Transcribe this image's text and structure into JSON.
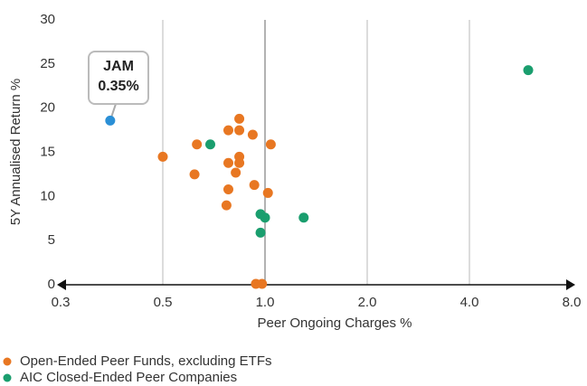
{
  "chart_data": {
    "type": "scatter",
    "xlabel": "Peer Ongoing Charges %",
    "ylabel": "5Y Annualised Return %",
    "xscale": "log",
    "xlim": [
      0.25,
      8
    ],
    "xticks": [
      {
        "value": 0.25,
        "label": "0.3"
      },
      0.5,
      {
        "value": 1,
        "label": "1.0"
      },
      {
        "value": 2,
        "label": "2.0"
      },
      {
        "value": 4,
        "label": "4.0"
      },
      {
        "value": 8,
        "label": "8.0"
      }
    ],
    "ylim": [
      0,
      30
    ],
    "yticks": [
      0,
      5,
      10,
      15,
      20,
      25,
      30
    ],
    "grid": true,
    "legend": "bottom-left",
    "series": [
      {
        "name": "Open-Ended Peer Funds, excluding ETFs",
        "color": "#e87722",
        "x": [
          0.5,
          0.63,
          0.62,
          0.78,
          0.84,
          0.84,
          0.92,
          1.04,
          0.84,
          0.84,
          0.78,
          0.82,
          0.78,
          0.77,
          0.93,
          1.02,
          0.94,
          0.98
        ],
        "values": [
          14.5,
          15.9,
          12.5,
          17.5,
          18.8,
          17.5,
          17.0,
          15.9,
          14.5,
          13.8,
          13.8,
          12.7,
          10.8,
          9.0,
          11.3,
          10.4,
          0.1,
          0.1
        ]
      },
      {
        "name": "AIC Closed-Ended Peer Companies",
        "color": "#1a9e6e",
        "x": [
          0.69,
          0.97,
          1.0,
          1.3,
          0.97,
          5.96
        ],
        "values": [
          15.9,
          8.0,
          7.6,
          7.6,
          5.9,
          24.3
        ]
      }
    ],
    "highlight": {
      "x": 0.35,
      "value": 18.6,
      "color": "#2a8fd6",
      "label": [
        "JAM",
        "0.35%"
      ]
    }
  }
}
